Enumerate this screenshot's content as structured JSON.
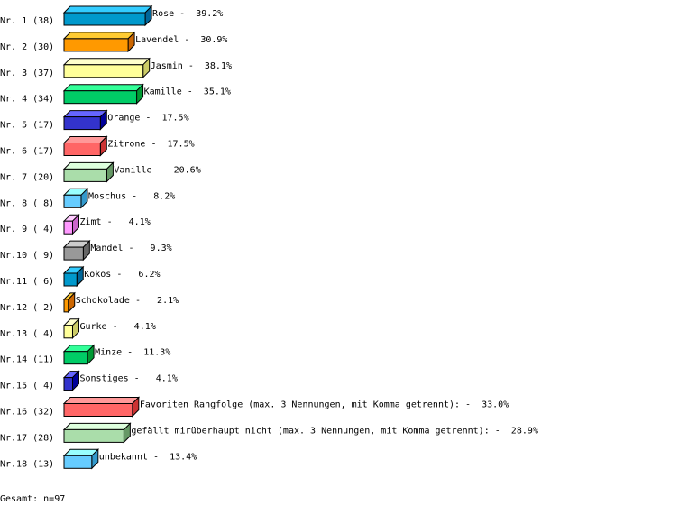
{
  "chart_data": {
    "type": "bar",
    "orientation": "horizontal",
    "style": "3d",
    "rows": [
      {
        "rank": "Nr. 1",
        "count": 38,
        "label": "Rose",
        "percent": "39.2%"
      },
      {
        "rank": "Nr. 2",
        "count": 30,
        "label": "Lavendel",
        "percent": "30.9%"
      },
      {
        "rank": "Nr. 3",
        "count": 37,
        "label": "Jasmin",
        "percent": "38.1%"
      },
      {
        "rank": "Nr. 4",
        "count": 34,
        "label": "Kamille",
        "percent": "35.1%"
      },
      {
        "rank": "Nr. 5",
        "count": 17,
        "label": "Orange",
        "percent": "17.5%"
      },
      {
        "rank": "Nr. 6",
        "count": 17,
        "label": "Zitrone",
        "percent": "17.5%"
      },
      {
        "rank": "Nr. 7",
        "count": 20,
        "label": "Vanille",
        "percent": "20.6%"
      },
      {
        "rank": "Nr. 8",
        "count": 8,
        "label": "Moschus",
        "percent": "8.2%"
      },
      {
        "rank": "Nr. 9",
        "count": 4,
        "label": "Zimt",
        "percent": "4.1%"
      },
      {
        "rank": "Nr.10",
        "count": 9,
        "label": "Mandel",
        "percent": "9.3%"
      },
      {
        "rank": "Nr.11",
        "count": 6,
        "label": "Kokos",
        "percent": "6.2%"
      },
      {
        "rank": "Nr.12",
        "count": 2,
        "label": "Schokolade",
        "percent": "2.1%"
      },
      {
        "rank": "Nr.13",
        "count": 4,
        "label": "Gurke",
        "percent": "4.1%"
      },
      {
        "rank": "Nr.14",
        "count": 11,
        "label": "Minze",
        "percent": "11.3%"
      },
      {
        "rank": "Nr.15",
        "count": 4,
        "label": "Sonstiges",
        "percent": "4.1%"
      },
      {
        "rank": "Nr.16",
        "count": 32,
        "label": "Favoriten Rangfolge (max. 3 Nennungen, mit Komma getrennt):",
        "percent": "33.0%"
      },
      {
        "rank": "Nr.17",
        "count": 28,
        "label": "gefällt mirüberhaupt nicht (max. 3 Nennungen, mit Komma getrennt):",
        "percent": "28.9%"
      },
      {
        "rank": "Nr.18",
        "count": 13,
        "label": "unbekannt",
        "percent": "13.4%"
      }
    ],
    "palette": [
      {
        "front": "#0099cc",
        "top": "#33ccff",
        "side": "#006699"
      },
      {
        "front": "#ff9900",
        "top": "#ffcc33",
        "side": "#cc6600"
      },
      {
        "front": "#ffff99",
        "top": "#ffffcc",
        "side": "#cccc66"
      },
      {
        "front": "#00cc66",
        "top": "#33ff99",
        "side": "#009933"
      },
      {
        "front": "#3333cc",
        "top": "#6666ff",
        "side": "#000099"
      },
      {
        "front": "#ff6666",
        "top": "#ff9999",
        "side": "#cc3333"
      },
      {
        "front": "#aaddaa",
        "top": "#ddffdd",
        "side": "#669966"
      },
      {
        "front": "#66ccff",
        "top": "#99ffff",
        "side": "#3399cc"
      },
      {
        "front": "#ff99ff",
        "top": "#ffccff",
        "side": "#cc66cc"
      },
      {
        "front": "#999999",
        "top": "#cccccc",
        "side": "#666666"
      }
    ]
  },
  "footer": {
    "total": "Gesamt: n=97"
  }
}
